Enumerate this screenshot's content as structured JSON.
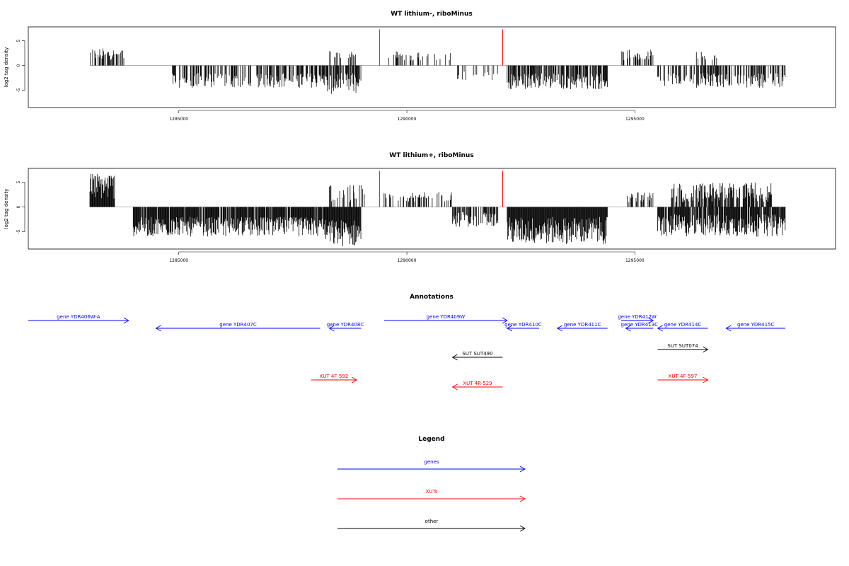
{
  "colors": {
    "genes": "#0000ff",
    "xuts": "#ff0000",
    "other": "#000000",
    "bar": "#000000",
    "marker": "#ff0000",
    "baseline": "#888888"
  },
  "chart_data": [
    {
      "type": "bar",
      "title": "WT lithium-, riboMinus",
      "ylabel": "log2 tag density",
      "xlim": [
        1281700,
        1299400
      ],
      "ylim": [
        -8.5,
        7.8
      ],
      "xticks": [
        1285000,
        1290000,
        1295000
      ],
      "yticks": [
        -5,
        0,
        5
      ],
      "markers": [
        1289400,
        1292100
      ],
      "segments": [
        {
          "start": 1283050,
          "end": 1283800,
          "min": 1.0,
          "max": 3.5,
          "density": 0.55
        },
        {
          "start": 1284800,
          "end": 1288200,
          "min": -4.5,
          "max": -1.5,
          "density": 0.5
        },
        {
          "start": 1288200,
          "end": 1289000,
          "min": -5.8,
          "max": -1.5,
          "density": 0.8
        },
        {
          "start": 1288200,
          "end": 1288900,
          "min": 1.5,
          "max": 3.0,
          "density": 0.3
        },
        {
          "start": 1289600,
          "end": 1291000,
          "min": 1.0,
          "max": 3.0,
          "density": 0.2
        },
        {
          "start": 1291100,
          "end": 1292000,
          "min": -3.0,
          "max": -1.0,
          "density": 0.2
        },
        {
          "start": 1292200,
          "end": 1294400,
          "min": -4.8,
          "max": -1.5,
          "density": 0.7
        },
        {
          "start": 1294700,
          "end": 1295400,
          "min": 1.0,
          "max": 3.2,
          "density": 0.45
        },
        {
          "start": 1295500,
          "end": 1298300,
          "min": -4.5,
          "max": -1.5,
          "density": 0.55
        },
        {
          "start": 1296300,
          "end": 1296800,
          "min": 1.0,
          "max": 2.8,
          "density": 0.2
        }
      ]
    },
    {
      "type": "bar",
      "title": "WT lithium+, riboMinus",
      "ylabel": "log2 tag density",
      "xlim": [
        1281700,
        1299400
      ],
      "ylim": [
        -8.5,
        7.8
      ],
      "xticks": [
        1285000,
        1290000,
        1295000
      ],
      "yticks": [
        -5,
        0,
        5
      ],
      "markers": [
        1289400,
        1292100
      ],
      "segments": [
        {
          "start": 1283050,
          "end": 1283600,
          "min": 1.5,
          "max": 7.0,
          "density": 1.0
        },
        {
          "start": 1284000,
          "end": 1288200,
          "min": -6.0,
          "max": -2.0,
          "density": 0.9
        },
        {
          "start": 1288200,
          "end": 1289000,
          "min": -8.0,
          "max": -2.5,
          "density": 1.0
        },
        {
          "start": 1288300,
          "end": 1289100,
          "min": 1.0,
          "max": 4.5,
          "density": 0.5
        },
        {
          "start": 1289500,
          "end": 1291000,
          "min": 1.0,
          "max": 3.0,
          "density": 0.35
        },
        {
          "start": 1291000,
          "end": 1292000,
          "min": -4.0,
          "max": -1.0,
          "density": 0.6
        },
        {
          "start": 1292200,
          "end": 1294400,
          "min": -7.5,
          "max": -2.0,
          "density": 1.0
        },
        {
          "start": 1294700,
          "end": 1295400,
          "min": 1.0,
          "max": 3.0,
          "density": 0.45
        },
        {
          "start": 1295500,
          "end": 1298300,
          "min": -6.0,
          "max": -1.5,
          "density": 0.9
        },
        {
          "start": 1295800,
          "end": 1298000,
          "min": 1.0,
          "max": 5.0,
          "density": 0.7
        }
      ]
    }
  ],
  "annotations": {
    "title": "Annotations",
    "features": [
      {
        "label": "gene YDR406W-A",
        "cls": "genes",
        "start": 1281700,
        "end": 1283900,
        "strand": "+",
        "row": 0
      },
      {
        "label": "gene YDR407C",
        "cls": "genes",
        "start": 1284500,
        "end": 1288100,
        "strand": "-",
        "row": 1
      },
      {
        "label": "gene YDR408C",
        "cls": "genes",
        "start": 1288300,
        "end": 1289000,
        "strand": "-",
        "row": 1
      },
      {
        "label": "gene YDR409W",
        "cls": "genes",
        "start": 1289500,
        "end": 1292200,
        "strand": "+",
        "row": 0
      },
      {
        "label": "gene YDR410C",
        "cls": "genes",
        "start": 1292200,
        "end": 1292900,
        "strand": "-",
        "row": 1
      },
      {
        "label": "gene YDR411C",
        "cls": "genes",
        "start": 1293300,
        "end": 1294400,
        "strand": "-",
        "row": 1
      },
      {
        "label": "gene YDR412W",
        "cls": "genes",
        "start": 1294700,
        "end": 1295400,
        "strand": "+",
        "row": 0
      },
      {
        "label": "gene YDR413C",
        "cls": "genes",
        "start": 1294800,
        "end": 1295400,
        "strand": "-",
        "row": 1
      },
      {
        "label": "gene YDR414C",
        "cls": "genes",
        "start": 1295500,
        "end": 1296600,
        "strand": "-",
        "row": 1
      },
      {
        "label": "gene YDR415C",
        "cls": "genes",
        "start": 1297000,
        "end": 1298300,
        "strand": "-",
        "row": 1
      },
      {
        "label": "SUT SUT490",
        "cls": "other",
        "start": 1291000,
        "end": 1292100,
        "strand": "-",
        "row": 2
      },
      {
        "label": "SUT SUT074",
        "cls": "other",
        "start": 1295500,
        "end": 1296600,
        "strand": "+",
        "row": 3
      },
      {
        "label": "XUT 4F-592",
        "cls": "xuts",
        "start": 1287900,
        "end": 1288900,
        "strand": "+",
        "row": 4
      },
      {
        "label": "XUT 4R-529",
        "cls": "xuts",
        "start": 1291000,
        "end": 1292100,
        "strand": "-",
        "row": 5
      },
      {
        "label": "XUT 4F-597",
        "cls": "xuts",
        "start": 1295500,
        "end": 1296600,
        "strand": "+",
        "row": 4
      }
    ]
  },
  "legend": {
    "title": "Legend",
    "items": [
      {
        "label": "genes",
        "cls": "genes"
      },
      {
        "label": "XUTs",
        "cls": "xuts"
      },
      {
        "label": "other",
        "cls": "other"
      }
    ]
  }
}
